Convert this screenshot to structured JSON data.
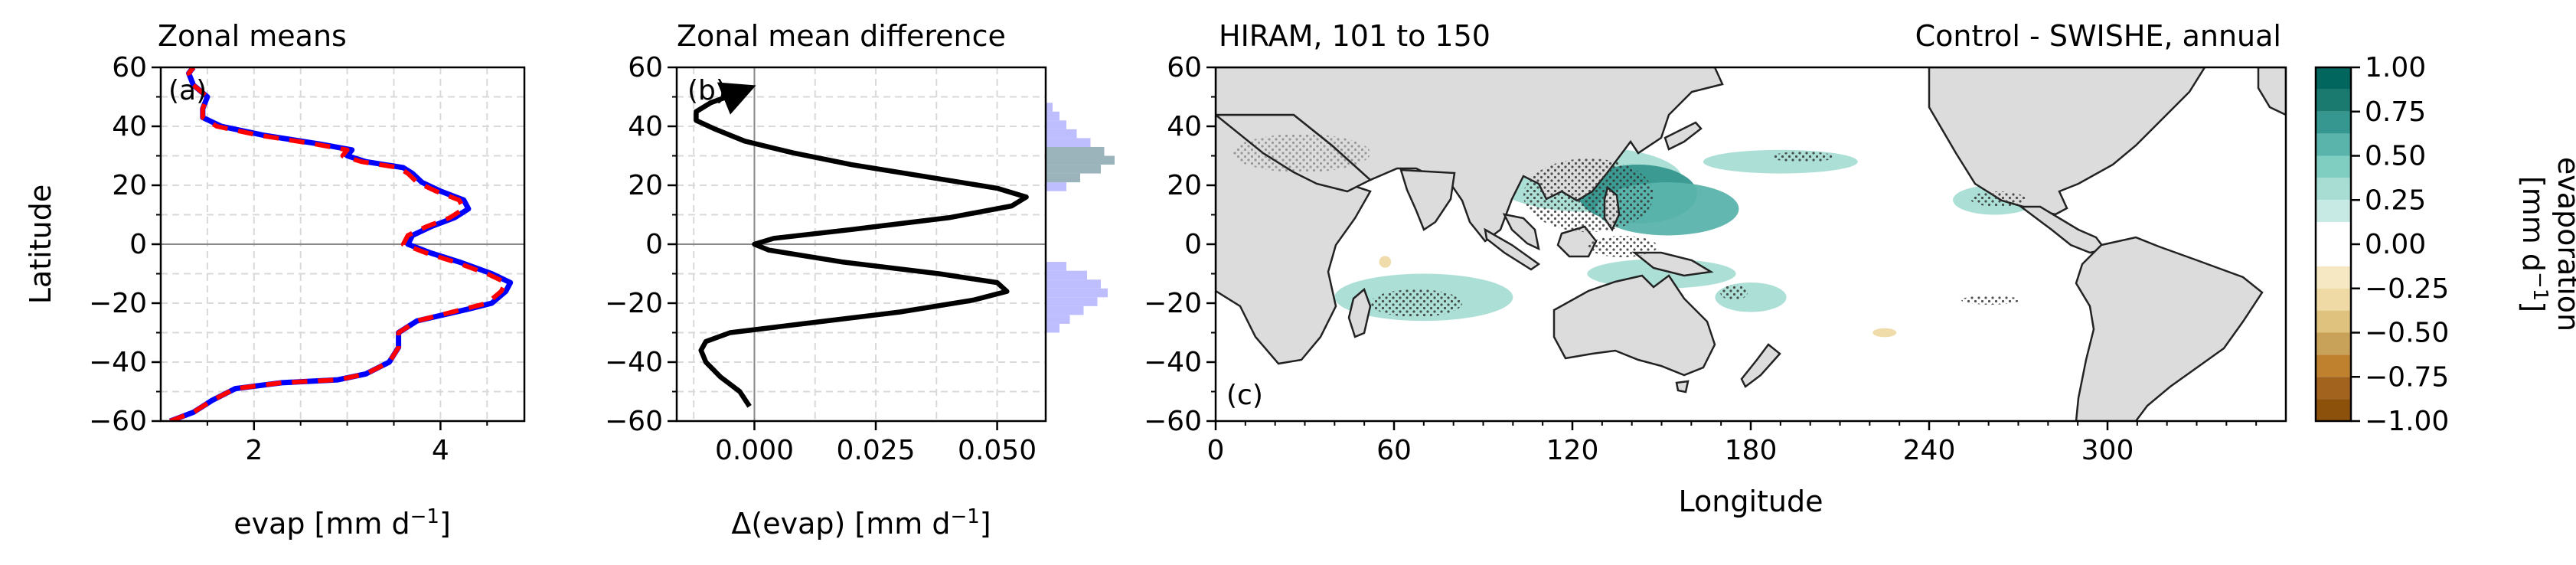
{
  "chart_data": [
    {
      "panel": "(a)",
      "type": "line",
      "title": "Zonal means",
      "xlabel_base": "evap [mm d",
      "xlabel_sup": "−1",
      "xlabel_tail": "]",
      "ylabel": "Latitude",
      "xlim": [
        1.0,
        4.9
      ],
      "ylim": [
        -60,
        60
      ],
      "xticks": [
        2,
        4
      ],
      "yticks": [
        -60,
        -40,
        -20,
        0,
        20,
        40,
        60
      ],
      "grid": true,
      "series": [
        {
          "color": "#0000ff",
          "style": "solid",
          "points": [
            [
              1.1,
              -60
            ],
            [
              1.35,
              -57
            ],
            [
              1.55,
              -53
            ],
            [
              1.8,
              -49
            ],
            [
              2.3,
              -47
            ],
            [
              2.9,
              -46
            ],
            [
              3.2,
              -44
            ],
            [
              3.45,
              -40
            ],
            [
              3.55,
              -35
            ],
            [
              3.55,
              -30
            ],
            [
              3.75,
              -26
            ],
            [
              4.3,
              -22
            ],
            [
              4.55,
              -20
            ],
            [
              4.7,
              -16
            ],
            [
              4.75,
              -13
            ],
            [
              4.55,
              -10
            ],
            [
              4.2,
              -6
            ],
            [
              3.9,
              -3
            ],
            [
              3.65,
              0
            ],
            [
              3.7,
              3
            ],
            [
              3.9,
              6
            ],
            [
              4.15,
              9
            ],
            [
              4.3,
              12
            ],
            [
              4.25,
              15
            ],
            [
              4.0,
              18
            ],
            [
              3.8,
              21
            ],
            [
              3.7,
              24
            ],
            [
              3.6,
              26
            ],
            [
              3.2,
              28
            ],
            [
              3.0,
              30
            ],
            [
              3.05,
              32
            ],
            [
              2.7,
              34
            ],
            [
              2.1,
              37
            ],
            [
              1.65,
              40
            ],
            [
              1.45,
              43
            ],
            [
              1.45,
              46
            ],
            [
              1.5,
              50
            ],
            [
              1.35,
              54
            ],
            [
              1.3,
              58
            ],
            [
              1.35,
              60
            ]
          ]
        },
        {
          "color": "#ff0000",
          "style": "dashed",
          "points": [
            [
              1.1,
              -60
            ],
            [
              1.35,
              -57
            ],
            [
              1.55,
              -53
            ],
            [
              1.8,
              -49
            ],
            [
              2.3,
              -47
            ],
            [
              2.9,
              -46
            ],
            [
              3.2,
              -44
            ],
            [
              3.45,
              -40
            ],
            [
              3.55,
              -35
            ],
            [
              3.55,
              -30
            ],
            [
              3.75,
              -26
            ],
            [
              4.25,
              -22
            ],
            [
              4.5,
              -20
            ],
            [
              4.65,
              -16
            ],
            [
              4.7,
              -13
            ],
            [
              4.5,
              -10
            ],
            [
              4.15,
              -6
            ],
            [
              3.85,
              -3
            ],
            [
              3.6,
              0
            ],
            [
              3.65,
              3
            ],
            [
              3.85,
              6
            ],
            [
              4.1,
              9
            ],
            [
              4.25,
              12
            ],
            [
              4.2,
              15
            ],
            [
              3.95,
              18
            ],
            [
              3.75,
              21
            ],
            [
              3.65,
              24
            ],
            [
              3.55,
              26
            ],
            [
              3.15,
              28
            ],
            [
              2.95,
              30
            ],
            [
              3.0,
              32
            ],
            [
              2.65,
              34
            ],
            [
              2.05,
              37
            ],
            [
              1.6,
              40
            ],
            [
              1.45,
              43
            ],
            [
              1.45,
              46
            ],
            [
              1.5,
              50
            ],
            [
              1.35,
              54
            ],
            [
              1.3,
              58
            ],
            [
              1.35,
              60
            ]
          ]
        }
      ]
    },
    {
      "panel": "(b)",
      "type": "line",
      "title": "Zonal mean difference",
      "xlabel_base": "Δ(evap) [mm d",
      "xlabel_sup": "−1",
      "xlabel_tail": "]",
      "xlim": [
        -0.016,
        0.06
      ],
      "ylim": [
        -60,
        60
      ],
      "xticks": [
        0.0,
        0.025,
        0.05
      ],
      "xtick_labels": [
        "0.000",
        "0.025",
        "0.050"
      ],
      "yticks": [
        -60,
        -40,
        -20,
        0,
        20,
        40,
        60
      ],
      "grid": true,
      "series": [
        {
          "color": "#000000",
          "style": "solid",
          "points": [
            [
              -0.001,
              -55
            ],
            [
              -0.003,
              -50
            ],
            [
              -0.007,
              -45
            ],
            [
              -0.01,
              -40
            ],
            [
              -0.011,
              -36
            ],
            [
              -0.01,
              -33
            ],
            [
              -0.005,
              -30
            ],
            [
              0.01,
              -27
            ],
            [
              0.03,
              -23
            ],
            [
              0.045,
              -19
            ],
            [
              0.052,
              -16
            ],
            [
              0.05,
              -13
            ],
            [
              0.038,
              -10
            ],
            [
              0.018,
              -6
            ],
            [
              0.003,
              -2
            ],
            [
              0.0,
              0
            ],
            [
              0.004,
              2
            ],
            [
              0.02,
              5
            ],
            [
              0.04,
              9
            ],
            [
              0.053,
              13
            ],
            [
              0.056,
              16
            ],
            [
              0.05,
              19
            ],
            [
              0.035,
              23
            ],
            [
              0.02,
              27
            ],
            [
              0.008,
              31
            ],
            [
              -0.002,
              35
            ],
            [
              -0.008,
              39
            ],
            [
              -0.012,
              42
            ],
            [
              -0.012,
              45
            ],
            [
              -0.009,
              48
            ],
            [
              -0.004,
              51
            ],
            [
              -0.001,
              53
            ]
          ],
          "arrow_at_end": true
        }
      ],
      "marginal_histogram": {
        "color": "#b3b3ff",
        "overlap_color": "#8aa7b0",
        "bins_lat": [
          -30,
          -27,
          -24,
          -21,
          -18,
          -15,
          -12,
          -9,
          18,
          21,
          24,
          27,
          30,
          33,
          36,
          39,
          42,
          45
        ],
        "widths": [
          0.2,
          0.35,
          0.55,
          0.75,
          0.9,
          0.8,
          0.6,
          0.3,
          0.3,
          0.5,
          0.8,
          1.0,
          0.85,
          0.65,
          0.45,
          0.3,
          0.2,
          0.1
        ]
      }
    },
    {
      "panel": "(c)",
      "type": "heatmap",
      "title_left": "HIRAM, 101 to 150",
      "title_right": "Control - SWISHE, annual",
      "xlabel": "Longitude",
      "xlim": [
        0,
        360
      ],
      "ylim": [
        -60,
        60
      ],
      "xticks": [
        0,
        60,
        120,
        180,
        240,
        300
      ],
      "yticks": [
        -60,
        -40,
        -20,
        0,
        20,
        40,
        60
      ],
      "land_color": "#dcdcdc",
      "positive_anomalies": [
        {
          "lon": 125,
          "lat": 22,
          "rx": 32,
          "ry": 11,
          "level": 0.35
        },
        {
          "lon": 142,
          "lat": 17,
          "rx": 20,
          "ry": 10,
          "level": 0.7
        },
        {
          "lon": 152,
          "lat": 12,
          "rx": 24,
          "ry": 9,
          "level": 0.55
        },
        {
          "lon": 190,
          "lat": 28,
          "rx": 26,
          "ry": 4,
          "level": 0.3
        },
        {
          "lon": 70,
          "lat": -18,
          "rx": 30,
          "ry": 8,
          "level": 0.35
        },
        {
          "lon": 150,
          "lat": -10,
          "rx": 25,
          "ry": 5,
          "level": 0.3
        },
        {
          "lon": 180,
          "lat": -18,
          "rx": 12,
          "ry": 5,
          "level": 0.3
        },
        {
          "lon": 262,
          "lat": 15,
          "rx": 14,
          "ry": 5,
          "level": 0.3
        }
      ],
      "negative_anomalies": [
        {
          "lon": 225,
          "lat": -30,
          "rx": 4,
          "ry": 1.5,
          "level": -0.3
        },
        {
          "lon": 57,
          "lat": -6,
          "rx": 2,
          "ry": 2,
          "level": -0.3
        }
      ],
      "colorbar": {
        "label_line1": "evaporation",
        "label_line2_base": "[mm d",
        "label_line2_sup": "−1",
        "label_line2_tail": "]",
        "range": [
          -1.0,
          1.0
        ],
        "ticks": [
          1.0,
          0.75,
          0.5,
          0.25,
          0.0,
          -0.25,
          -0.5,
          -0.75,
          -1.0
        ],
        "tick_labels": [
          "1.00",
          "0.75",
          "0.50",
          "0.25",
          "0.00",
          "−0.25",
          "−0.50",
          "−0.75",
          "−1.00"
        ],
        "levels": [
          {
            "from": 0.875,
            "to": 1.0,
            "color": "#01665e"
          },
          {
            "from": 0.75,
            "to": 0.875,
            "color": "#1b7a70"
          },
          {
            "from": 0.625,
            "to": 0.75,
            "color": "#35978f"
          },
          {
            "from": 0.5,
            "to": 0.625,
            "color": "#5ab4ac"
          },
          {
            "from": 0.375,
            "to": 0.5,
            "color": "#80cdc1"
          },
          {
            "from": 0.25,
            "to": 0.375,
            "color": "#a8ddd4"
          },
          {
            "from": 0.125,
            "to": 0.25,
            "color": "#c7eae5"
          },
          {
            "from": 0.0,
            "to": 0.125,
            "color": "#ffffff"
          },
          {
            "from": -0.125,
            "to": 0.0,
            "color": "#ffffff"
          },
          {
            "from": -0.25,
            "to": -0.125,
            "color": "#f6e8c3"
          },
          {
            "from": -0.375,
            "to": -0.25,
            "color": "#efdaa6"
          },
          {
            "from": -0.5,
            "to": -0.375,
            "color": "#dfc27d"
          },
          {
            "from": -0.625,
            "to": -0.5,
            "color": "#c9a25a"
          },
          {
            "from": -0.75,
            "to": -0.625,
            "color": "#bf812d"
          },
          {
            "from": -0.875,
            "to": -0.75,
            "color": "#a1631e"
          },
          {
            "from": -1.0,
            "to": -0.875,
            "color": "#8c510a"
          }
        ]
      }
    }
  ]
}
